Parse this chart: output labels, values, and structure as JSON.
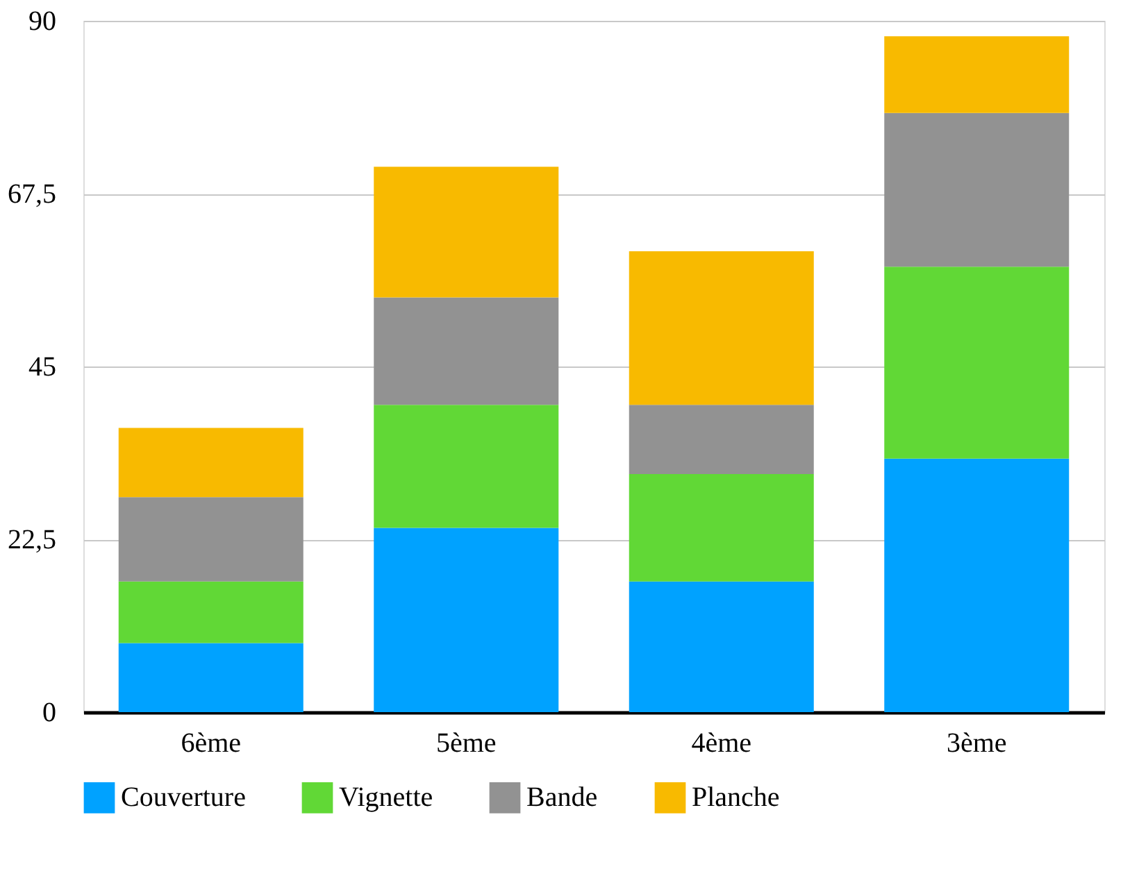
{
  "chart_data": {
    "type": "bar",
    "stacked": true,
    "categories": [
      "6ème",
      "5ème",
      "4ème",
      "3ème"
    ],
    "series": [
      {
        "name": "Couverture",
        "color": "#00a2ff",
        "values": [
          9,
          24,
          17,
          33
        ]
      },
      {
        "name": "Vignette",
        "color": "#61d836",
        "values": [
          8,
          16,
          14,
          25
        ]
      },
      {
        "name": "Bande",
        "color": "#929292",
        "values": [
          11,
          14,
          9,
          20
        ]
      },
      {
        "name": "Planche",
        "color": "#f8ba00",
        "values": [
          9,
          17,
          20,
          10
        ]
      }
    ],
    "ylim": [
      0,
      90
    ],
    "yticks": [
      0,
      {
        "value": 22.5,
        "label": "22,5"
      },
      45,
      {
        "value": 67.5,
        "label": "67,5"
      },
      90
    ],
    "grid": "y",
    "legend": "bottom"
  }
}
